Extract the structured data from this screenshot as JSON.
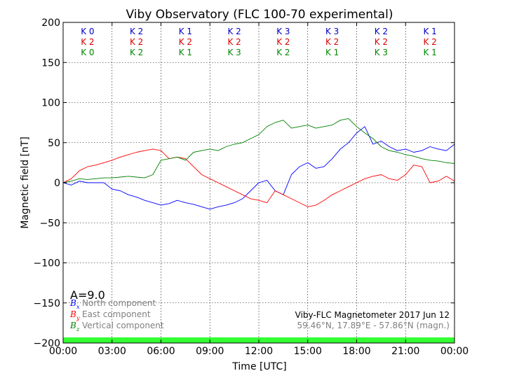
{
  "chart_data": {
    "type": "line",
    "title": "Viby Observatory (FLC 100-70 experimental)",
    "xlabel": "Time [UTC]",
    "ylabel": "Magnetic field [nT]",
    "xlim": [
      0,
      24
    ],
    "ylim": [
      -200,
      200
    ],
    "x_ticks": [
      {
        "v": 0,
        "label": "00:00"
      },
      {
        "v": 3,
        "label": "03:00"
      },
      {
        "v": 6,
        "label": "06:00"
      },
      {
        "v": 9,
        "label": "09:00"
      },
      {
        "v": 12,
        "label": "12:00"
      },
      {
        "v": 15,
        "label": "15:00"
      },
      {
        "v": 18,
        "label": "18:00"
      },
      {
        "v": 21,
        "label": "21:00"
      },
      {
        "v": 24,
        "label": "00:00"
      }
    ],
    "y_ticks": [
      {
        "v": 200,
        "label": "200"
      },
      {
        "v": 150,
        "label": "150"
      },
      {
        "v": 100,
        "label": "100"
      },
      {
        "v": 50,
        "label": "50"
      },
      {
        "v": 0,
        "label": "0"
      },
      {
        "v": -50,
        "label": "−50"
      },
      {
        "v": -100,
        "label": "−100"
      },
      {
        "v": -150,
        "label": "−150"
      },
      {
        "v": -200,
        "label": "−200"
      }
    ],
    "grid": true,
    "k_indices": {
      "rows": [
        {
          "label": "K",
          "color": "#0000cc",
          "values": [
            0,
            2,
            1,
            2,
            3,
            3,
            2,
            1
          ]
        },
        {
          "label": "K",
          "color": "#dd0000",
          "values": [
            2,
            2,
            2,
            2,
            2,
            2,
            2,
            2
          ]
        },
        {
          "label": "K",
          "color": "#008800",
          "values": [
            0,
            2,
            1,
            3,
            2,
            1,
            3,
            1
          ]
        }
      ]
    },
    "series": [
      {
        "color": "#0000ff",
        "x": [
          0,
          0.5,
          1,
          1.5,
          2,
          2.5,
          3,
          3.5,
          4,
          4.5,
          5,
          5.5,
          6,
          6.5,
          7,
          7.5,
          8,
          8.5,
          9,
          9.5,
          10,
          10.5,
          11,
          11.5,
          12,
          12.5,
          13,
          13.5,
          14,
          14.5,
          15,
          15.5,
          16,
          16.5,
          17,
          17.5,
          18,
          18.5,
          19,
          19.5,
          20,
          20.5,
          21,
          21.5,
          22,
          22.5,
          23,
          23.5,
          24
        ],
        "values": [
          0,
          -3,
          2,
          0,
          0,
          0,
          -8,
          -10,
          -15,
          -18,
          -22,
          -25,
          -28,
          -26,
          -22,
          -25,
          -27,
          -30,
          -33,
          -30,
          -28,
          -25,
          -20,
          -10,
          0,
          3,
          -10,
          -15,
          10,
          20,
          25,
          18,
          20,
          30,
          42,
          50,
          62,
          70,
          48,
          52,
          45,
          40,
          42,
          38,
          40,
          45,
          42,
          40,
          48
        ]
      },
      {
        "color": "#ff0000",
        "x": [
          0,
          0.5,
          1,
          1.5,
          2,
          2.5,
          3,
          3.5,
          4,
          4.5,
          5,
          5.5,
          6,
          6.5,
          7,
          7.5,
          8,
          8.5,
          9,
          9.5,
          10,
          10.5,
          11,
          11.5,
          12,
          12.5,
          13,
          13.5,
          14,
          14.5,
          15,
          15.5,
          16,
          16.5,
          17,
          17.5,
          18,
          18.5,
          19,
          19.5,
          20,
          20.5,
          21,
          21.5,
          22,
          22.5,
          23,
          23.5,
          24
        ],
        "values": [
          0,
          5,
          15,
          20,
          22,
          25,
          28,
          32,
          35,
          38,
          40,
          42,
          40,
          30,
          32,
          30,
          20,
          10,
          5,
          0,
          -5,
          -10,
          -15,
          -20,
          -22,
          -25,
          -10,
          -15,
          -20,
          -25,
          -30,
          -28,
          -22,
          -15,
          -10,
          -5,
          0,
          5,
          8,
          10,
          5,
          3,
          10,
          22,
          20,
          0,
          2,
          8,
          2
        ]
      },
      {
        "color": "#008000",
        "x": [
          0,
          0.5,
          1,
          1.5,
          2,
          2.5,
          3,
          3.5,
          4,
          4.5,
          5,
          5.5,
          6,
          6.5,
          7,
          7.5,
          8,
          8.5,
          9,
          9.5,
          10,
          10.5,
          11,
          11.5,
          12,
          12.5,
          13,
          13.5,
          14,
          14.5,
          15,
          15.5,
          16,
          16.5,
          17,
          17.5,
          18,
          18.5,
          19,
          19.5,
          20,
          20.5,
          21,
          21.5,
          22,
          22.5,
          23,
          23.5,
          24
        ],
        "values": [
          0,
          2,
          5,
          4,
          5,
          6,
          6,
          7,
          8,
          7,
          6,
          10,
          28,
          30,
          32,
          28,
          38,
          40,
          42,
          40,
          45,
          48,
          50,
          55,
          60,
          70,
          75,
          78,
          68,
          70,
          72,
          68,
          70,
          72,
          78,
          80,
          70,
          62,
          55,
          45,
          40,
          38,
          35,
          33,
          30,
          28,
          27,
          25,
          24
        ]
      }
    ],
    "legend": {
      "placement": "lower-left",
      "items": [
        {
          "symbol": "B",
          "sub": "x",
          "text": "North component",
          "color": "#0000ff"
        },
        {
          "symbol": "B",
          "sub": "y",
          "text": "East component",
          "color": "#ff0000"
        },
        {
          "symbol": "B",
          "sub": "z",
          "text": "Vertical component",
          "color": "#008000"
        }
      ]
    },
    "a_index": "A=9.0",
    "info_line1": "Viby-FLC Magnetometer 2017 Jun 12",
    "info_line2": "59.46°N, 17.89°E - 57.86°N (magn.)",
    "status_bar_color": "#33ff33"
  }
}
